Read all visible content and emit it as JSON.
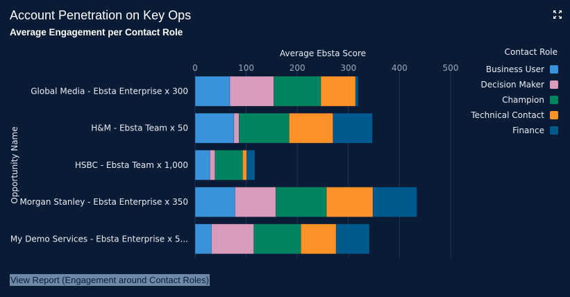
{
  "header": {
    "title": "Account Penetration on Key Ops",
    "subtitle": "Average Engagement per Contact Role",
    "expand_icon": "expand-icon"
  },
  "footer": {
    "link_label": "View Report (Engagement around Contact Roles)"
  },
  "chart_data": {
    "type": "bar",
    "orientation": "horizontal",
    "stacked": true,
    "xlabel": "Average Ebsta Score",
    "ylabel": "Opportunity Name",
    "xlim": [
      0,
      500
    ],
    "xticks": [
      "0",
      "100",
      "200",
      "300",
      "400",
      "500"
    ],
    "grid": true,
    "legend_title": "Contact Role",
    "legend_position": "top-right",
    "categories": [
      "Global Media - Ebsta Enterprise x 300",
      "H&M - Ebsta Team x 50",
      "HSBC - Ebsta Team x 1,000",
      "Morgan Stanley - Ebsta Enterprise x 350",
      "My Demo Services - Ebsta Enterprise x 5..."
    ],
    "series": [
      {
        "name": "Business User",
        "color": "#3a93da",
        "values": [
          68,
          76,
          29,
          78,
          32
        ]
      },
      {
        "name": "Decision Maker",
        "color": "#d99bbc",
        "values": [
          86,
          10,
          10,
          80,
          83
        ]
      },
      {
        "name": "Champion",
        "color": "#028461",
        "values": [
          92,
          98,
          54,
          99,
          92
        ]
      },
      {
        "name": "Technical Contact",
        "color": "#fb9228",
        "values": [
          68,
          86,
          8,
          91,
          69
        ]
      },
      {
        "name": "Finance",
        "color": "#005a8e",
        "values": [
          5,
          77,
          16,
          86,
          65
        ]
      }
    ]
  }
}
